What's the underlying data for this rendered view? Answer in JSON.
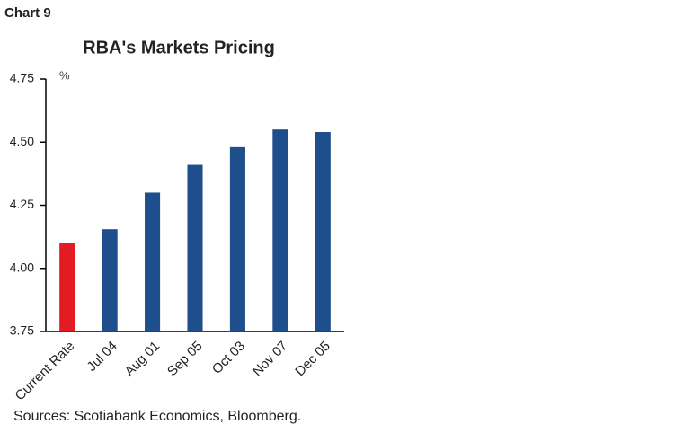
{
  "header": "Chart 9",
  "chart_data": {
    "type": "bar",
    "title": "RBA's Markets Pricing",
    "y_unit": "%",
    "categories": [
      "Current Rate",
      "Jul 04",
      "Aug 01",
      "Sep 05",
      "Oct 03",
      "Nov 07",
      "Dec 05"
    ],
    "values": [
      4.1,
      4.155,
      4.3,
      4.41,
      4.48,
      4.55,
      4.54
    ],
    "colors": [
      "#e31b23",
      "#1f4e8c",
      "#1f4e8c",
      "#1f4e8c",
      "#1f4e8c",
      "#1f4e8c",
      "#1f4e8c"
    ],
    "ylim": [
      3.75,
      4.75
    ],
    "yticks": [
      3.75,
      {
        "value": 4.0,
        "label": "4.00"
      },
      4.25,
      {
        "value": 4.5,
        "label": "4.50"
      },
      4.75
    ],
    "grid": false
  },
  "source": "Sources: Scotiabank Economics, Bloomberg."
}
